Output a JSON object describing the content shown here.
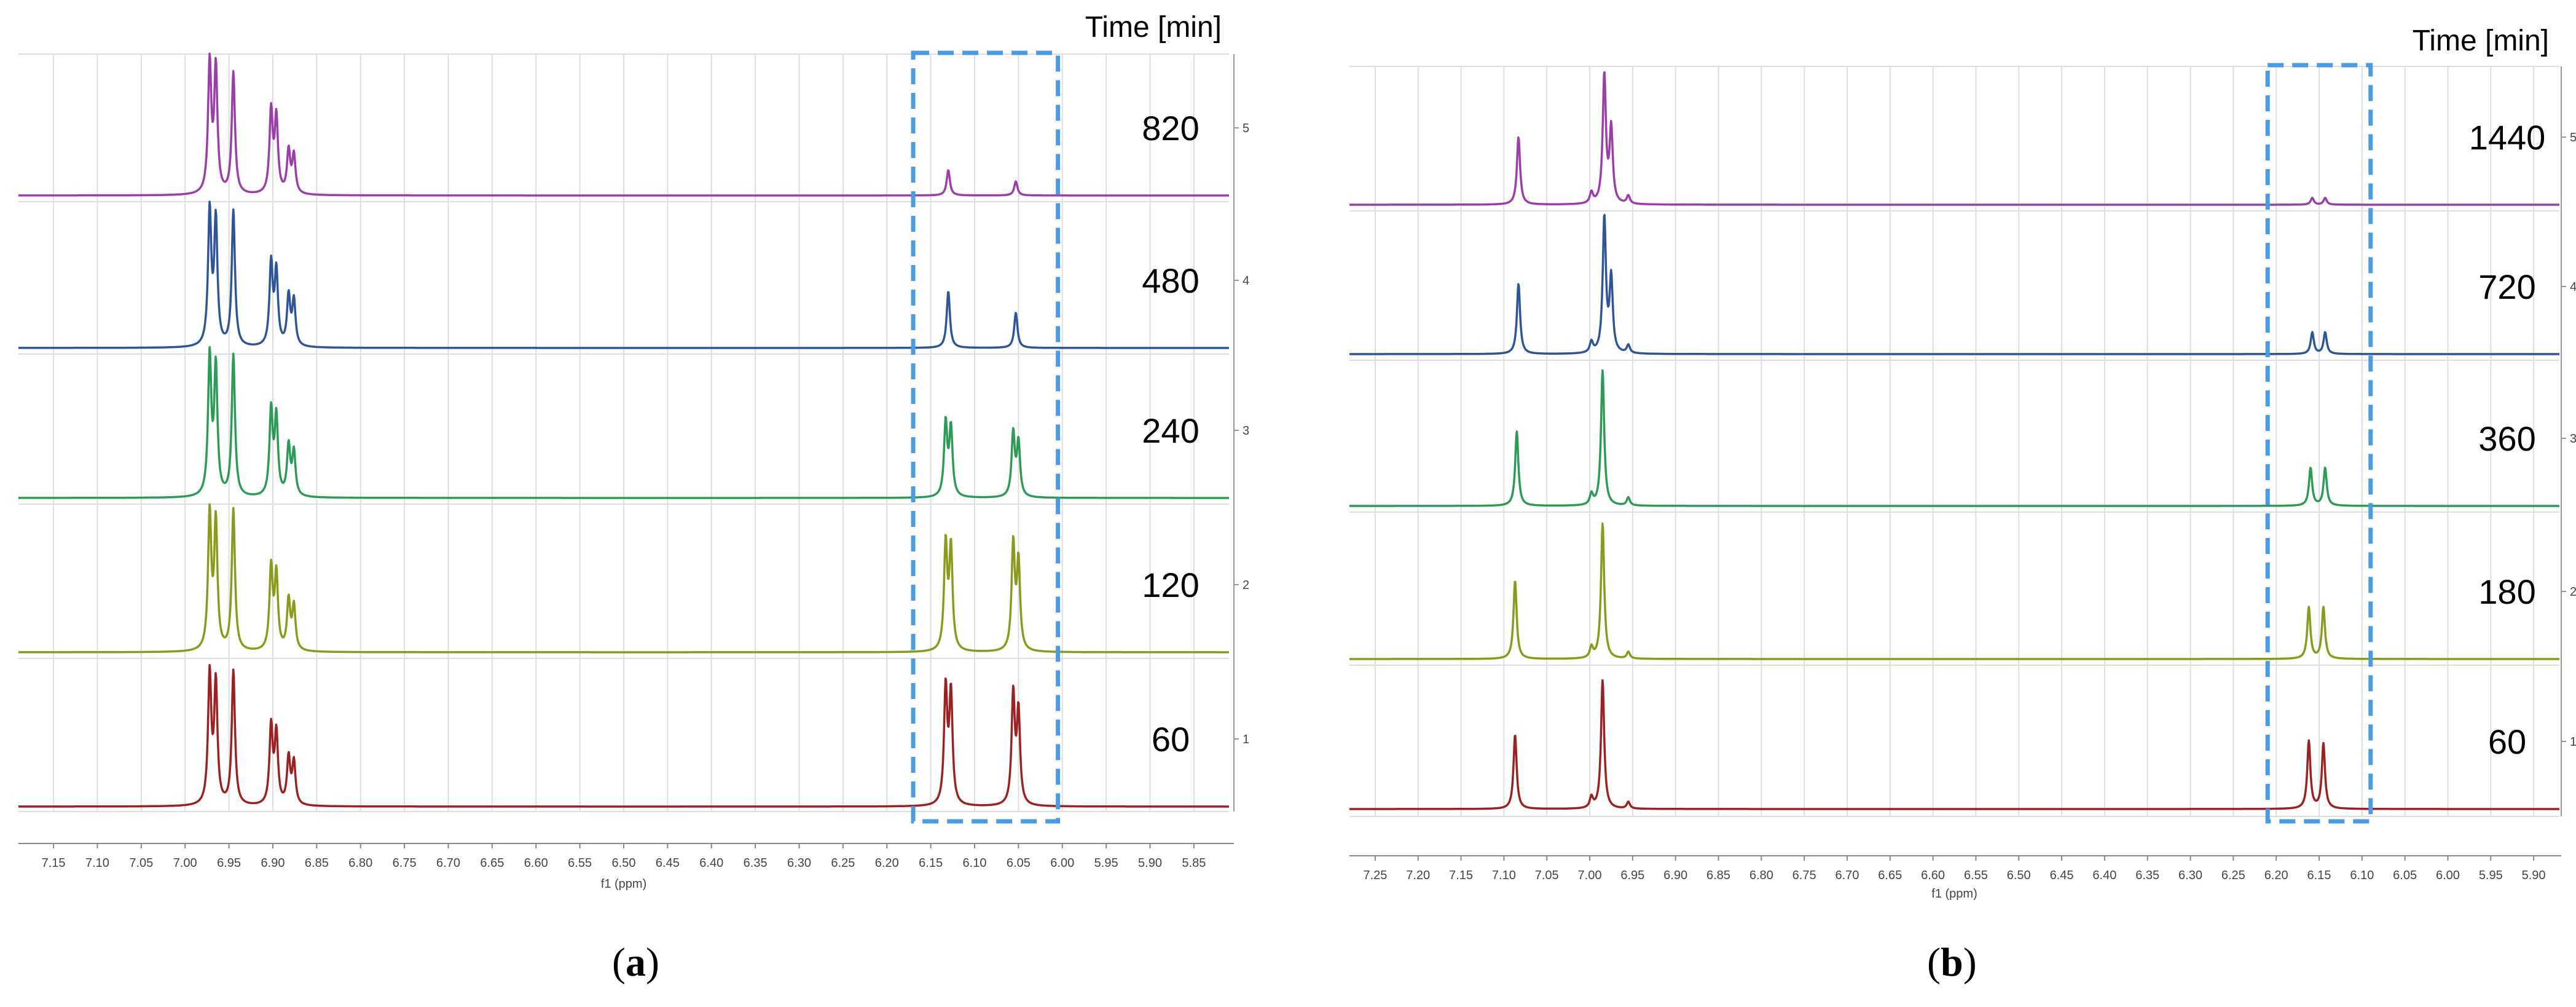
{
  "chart_data": [
    {
      "type": "line",
      "panel_label": "a",
      "title": "Time [min]",
      "xlabel": "f1 (ppm)",
      "x_range": [
        7.19,
        5.81
      ],
      "x_ticks": [
        "7.15",
        "7.10",
        "7.05",
        "7.00",
        "6.95",
        "6.90",
        "6.85",
        "6.80",
        "6.75",
        "6.70",
        "6.65",
        "6.60",
        "6.55",
        "6.50",
        "6.45",
        "6.40",
        "6.35",
        "6.30",
        "6.25",
        "6.20",
        "6.15",
        "6.10",
        "6.05",
        "6.00",
        "5.95",
        "5.90",
        "5.85"
      ],
      "highlight_region_ppm": [
        6.17,
        6.005
      ],
      "series": [
        {
          "name": "820",
          "index_label": "5",
          "color": "#9b3fa8",
          "peaks": [
            {
              "ppm": 6.972,
              "h": 0.92
            },
            {
              "ppm": 6.965,
              "h": 0.88
            },
            {
              "ppm": 6.945,
              "h": 0.86
            },
            {
              "ppm": 6.902,
              "h": 0.58
            },
            {
              "ppm": 6.896,
              "h": 0.53
            },
            {
              "ppm": 6.882,
              "h": 0.3
            },
            {
              "ppm": 6.876,
              "h": 0.27
            },
            {
              "ppm": 6.13,
              "h": 0.18
            },
            {
              "ppm": 6.053,
              "h": 0.1
            }
          ]
        },
        {
          "name": "480",
          "index_label": "4",
          "color": "#2f5597",
          "peaks": [
            {
              "ppm": 6.972,
              "h": 0.95
            },
            {
              "ppm": 6.965,
              "h": 0.88
            },
            {
              "ppm": 6.945,
              "h": 0.96
            },
            {
              "ppm": 6.902,
              "h": 0.58
            },
            {
              "ppm": 6.896,
              "h": 0.52
            },
            {
              "ppm": 6.882,
              "h": 0.35
            },
            {
              "ppm": 6.876,
              "h": 0.32
            },
            {
              "ppm": 6.13,
              "h": 0.4
            },
            {
              "ppm": 6.053,
              "h": 0.25
            }
          ]
        },
        {
          "name": "240",
          "index_label": "3",
          "color": "#2e9a58",
          "peaks": [
            {
              "ppm": 6.972,
              "h": 0.98
            },
            {
              "ppm": 6.965,
              "h": 0.9
            },
            {
              "ppm": 6.945,
              "h": 1.0
            },
            {
              "ppm": 6.902,
              "h": 0.6
            },
            {
              "ppm": 6.896,
              "h": 0.55
            },
            {
              "ppm": 6.882,
              "h": 0.35
            },
            {
              "ppm": 6.876,
              "h": 0.31
            },
            {
              "ppm": 6.133,
              "h": 0.52
            },
            {
              "ppm": 6.127,
              "h": 0.48
            },
            {
              "ppm": 6.056,
              "h": 0.45
            },
            {
              "ppm": 6.05,
              "h": 0.38
            }
          ]
        },
        {
          "name": "120",
          "index_label": "2",
          "color": "#8a9a1e",
          "peaks": [
            {
              "ppm": 6.972,
              "h": 0.96
            },
            {
              "ppm": 6.965,
              "h": 0.9
            },
            {
              "ppm": 6.945,
              "h": 1.0
            },
            {
              "ppm": 6.902,
              "h": 0.58
            },
            {
              "ppm": 6.896,
              "h": 0.53
            },
            {
              "ppm": 6.882,
              "h": 0.35
            },
            {
              "ppm": 6.876,
              "h": 0.31
            },
            {
              "ppm": 6.133,
              "h": 0.75
            },
            {
              "ppm": 6.127,
              "h": 0.72
            },
            {
              "ppm": 6.056,
              "h": 0.75
            },
            {
              "ppm": 6.05,
              "h": 0.62
            }
          ]
        },
        {
          "name": "60",
          "index_label": "1",
          "color": "#9b2222",
          "peaks": [
            {
              "ppm": 6.972,
              "h": 0.92
            },
            {
              "ppm": 6.965,
              "h": 0.85
            },
            {
              "ppm": 6.945,
              "h": 0.95
            },
            {
              "ppm": 6.902,
              "h": 0.55
            },
            {
              "ppm": 6.896,
              "h": 0.5
            },
            {
              "ppm": 6.882,
              "h": 0.33
            },
            {
              "ppm": 6.876,
              "h": 0.3
            },
            {
              "ppm": 6.133,
              "h": 0.82
            },
            {
              "ppm": 6.127,
              "h": 0.78
            },
            {
              "ppm": 6.056,
              "h": 0.78
            },
            {
              "ppm": 6.05,
              "h": 0.65
            }
          ]
        }
      ]
    },
    {
      "type": "line",
      "panel_label": "b",
      "title": "Time [min]",
      "xlabel": "f1 (ppm)",
      "x_range": [
        7.28,
        5.87
      ],
      "x_ticks": [
        "7.25",
        "7.20",
        "7.15",
        "7.10",
        "7.05",
        "7.00",
        "6.95",
        "6.90",
        "6.85",
        "6.80",
        "6.75",
        "6.70",
        "6.65",
        "6.60",
        "6.55",
        "6.50",
        "6.45",
        "6.40",
        "6.35",
        "6.30",
        "6.25",
        "6.20",
        "6.15",
        "6.10",
        "6.05",
        "6.00",
        "5.95",
        "5.90"
      ],
      "highlight_region_ppm": [
        6.21,
        6.09
      ],
      "series": [
        {
          "name": "1440",
          "index_label": "5",
          "color": "#9b3fa8",
          "peaks": [
            {
              "ppm": 7.083,
              "h": 0.5
            },
            {
              "ppm": 6.998,
              "h": 0.08
            },
            {
              "ppm": 6.983,
              "h": 0.95
            },
            {
              "ppm": 6.975,
              "h": 0.55
            },
            {
              "ppm": 6.955,
              "h": 0.06
            },
            {
              "ppm": 6.158,
              "h": 0.05
            },
            {
              "ppm": 6.143,
              "h": 0.05
            }
          ]
        },
        {
          "name": "720",
          "index_label": "4",
          "color": "#2f5597",
          "peaks": [
            {
              "ppm": 7.083,
              "h": 0.52
            },
            {
              "ppm": 6.998,
              "h": 0.08
            },
            {
              "ppm": 6.983,
              "h": 1.0
            },
            {
              "ppm": 6.975,
              "h": 0.55
            },
            {
              "ppm": 6.955,
              "h": 0.06
            },
            {
              "ppm": 6.158,
              "h": 0.16
            },
            {
              "ppm": 6.143,
              "h": 0.16
            }
          ]
        },
        {
          "name": "360",
          "index_label": "3",
          "color": "#2e9a58",
          "peaks": [
            {
              "ppm": 7.085,
              "h": 0.55
            },
            {
              "ppm": 6.998,
              "h": 0.08
            },
            {
              "ppm": 6.985,
              "h": 1.0
            },
            {
              "ppm": 6.955,
              "h": 0.06
            },
            {
              "ppm": 6.16,
              "h": 0.28
            },
            {
              "ppm": 6.143,
              "h": 0.28
            }
          ]
        },
        {
          "name": "180",
          "index_label": "2",
          "color": "#8a9a1e",
          "peaks": [
            {
              "ppm": 7.087,
              "h": 0.58
            },
            {
              "ppm": 6.998,
              "h": 0.08
            },
            {
              "ppm": 6.985,
              "h": 1.0
            },
            {
              "ppm": 6.955,
              "h": 0.05
            },
            {
              "ppm": 6.162,
              "h": 0.38
            },
            {
              "ppm": 6.145,
              "h": 0.38
            }
          ]
        },
        {
          "name": "60",
          "index_label": "1",
          "color": "#9b2222",
          "peaks": [
            {
              "ppm": 7.087,
              "h": 0.55
            },
            {
              "ppm": 6.998,
              "h": 0.08
            },
            {
              "ppm": 6.985,
              "h": 0.95
            },
            {
              "ppm": 6.955,
              "h": 0.05
            },
            {
              "ppm": 6.162,
              "h": 0.5
            },
            {
              "ppm": 6.145,
              "h": 0.48
            }
          ]
        }
      ]
    }
  ],
  "captions": [
    {
      "pre": "(",
      "label": "a",
      "post": ")"
    },
    {
      "pre": "(",
      "label": "b",
      "post": ")"
    }
  ]
}
